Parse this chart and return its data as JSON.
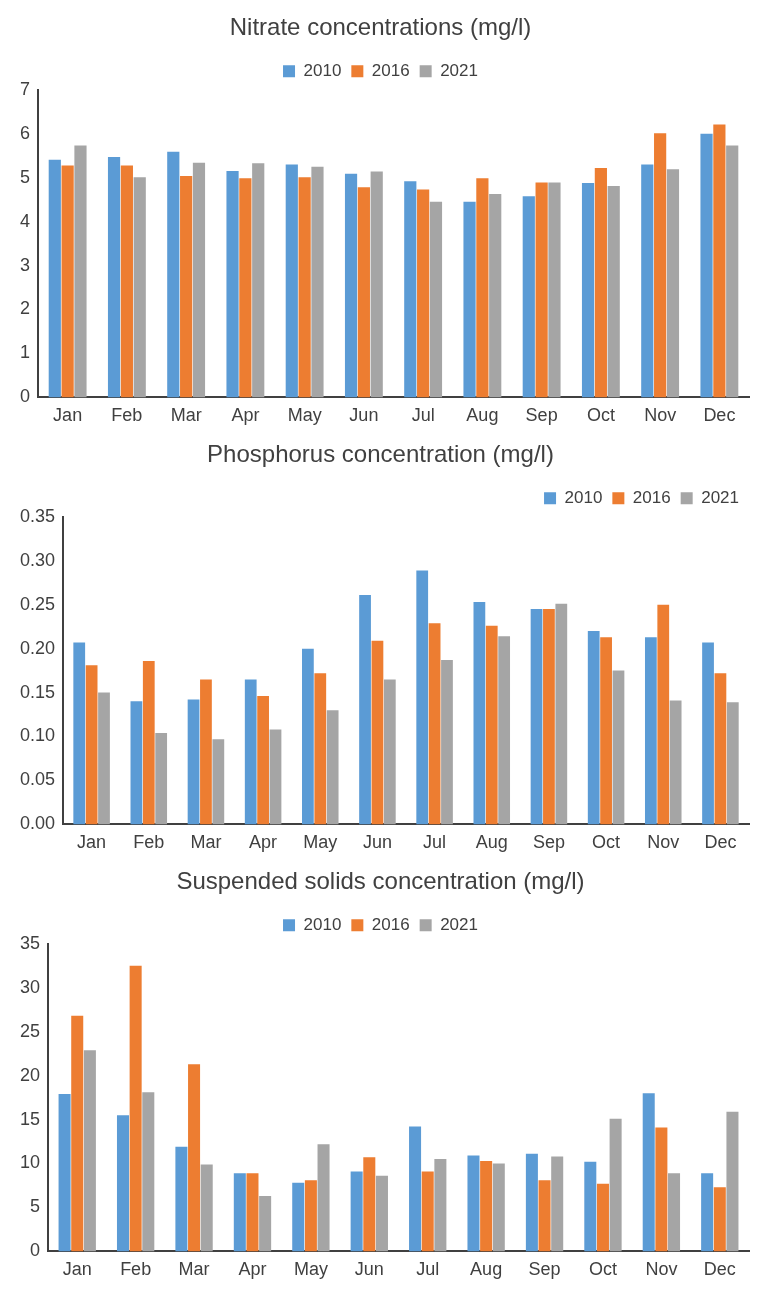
{
  "chart_data": [
    {
      "type": "bar",
      "title": "Nitrate concentrations (mg/l)",
      "categories": [
        "Jan",
        "Feb",
        "Mar",
        "Apr",
        "May",
        "Jun",
        "Jul",
        "Aug",
        "Sep",
        "Oct",
        "Nov",
        "Dec"
      ],
      "series": [
        {
          "name": "2010",
          "color": "#5b9bd5",
          "values": [
            5.41,
            5.47,
            5.59,
            5.15,
            5.3,
            5.09,
            4.92,
            4.45,
            4.58,
            4.88,
            5.3,
            6.0
          ]
        },
        {
          "name": "2016",
          "color": "#ed7d31",
          "values": [
            5.28,
            5.28,
            5.04,
            4.99,
            5.01,
            4.78,
            4.73,
            4.99,
            4.89,
            5.22,
            6.01,
            6.21
          ]
        },
        {
          "name": "2021",
          "color": "#a5a5a5",
          "values": [
            5.73,
            5.01,
            5.34,
            5.33,
            5.25,
            5.14,
            4.45,
            4.63,
            4.89,
            4.81,
            5.19,
            5.73
          ]
        }
      ],
      "ylim": [
        0,
        7
      ],
      "yticks": [
        0,
        1,
        2,
        3,
        4,
        5,
        6,
        7
      ],
      "grid": false,
      "legend": "top"
    },
    {
      "type": "bar",
      "title": "Phosphorus concentration (mg/l)",
      "categories": [
        "Jan",
        "Feb",
        "Mar",
        "Apr",
        "May",
        "Jun",
        "Jul",
        "Aug",
        "Sep",
        "Oct",
        "Nov",
        "Dec"
      ],
      "series": [
        {
          "name": "2010",
          "color": "#5b9bd5",
          "values": [
            0.207,
            0.14,
            0.142,
            0.165,
            0.2,
            0.261,
            0.289,
            0.253,
            0.245,
            0.22,
            0.213,
            0.207
          ]
        },
        {
          "name": "2016",
          "color": "#ed7d31",
          "values": [
            0.181,
            0.186,
            0.165,
            0.146,
            0.172,
            0.209,
            0.229,
            0.226,
            0.245,
            0.213,
            0.25,
            0.172
          ]
        },
        {
          "name": "2021",
          "color": "#a5a5a5",
          "values": [
            0.15,
            0.104,
            0.097,
            0.108,
            0.13,
            0.165,
            0.187,
            0.214,
            0.251,
            0.175,
            0.141,
            0.139
          ]
        }
      ],
      "ylim": [
        0,
        0.35
      ],
      "yticks": [
        {
          "value": 0,
          "label": "0.00"
        },
        {
          "value": 0.05,
          "label": "0.05"
        },
        {
          "value": 0.1,
          "label": "0.10"
        },
        {
          "value": 0.15,
          "label": "0.15"
        },
        {
          "value": 0.2,
          "label": "0.20"
        },
        {
          "value": 0.25,
          "label": "0.25"
        },
        {
          "value": 0.3,
          "label": "0.30"
        },
        {
          "value": 0.35,
          "label": "0.35"
        }
      ],
      "grid": false,
      "legend": "top right"
    },
    {
      "type": "bar",
      "title": "Suspended solids concentration (mg/l)",
      "categories": [
        "Jan",
        "Feb",
        "Mar",
        "Apr",
        "May",
        "Jun",
        "Jul",
        "Aug",
        "Sep",
        "Oct",
        "Nov",
        "Dec"
      ],
      "series": [
        {
          "name": "2010",
          "color": "#5b9bd5",
          "values": [
            17.9,
            15.5,
            11.9,
            8.9,
            7.8,
            9.1,
            14.2,
            10.9,
            11.1,
            10.2,
            18.0,
            8.9
          ]
        },
        {
          "name": "2016",
          "color": "#ed7d31",
          "values": [
            26.8,
            32.5,
            21.3,
            8.9,
            8.1,
            10.7,
            9.1,
            10.3,
            8.1,
            7.7,
            14.1,
            7.3
          ]
        },
        {
          "name": "2021",
          "color": "#a5a5a5",
          "values": [
            22.9,
            18.1,
            9.9,
            6.3,
            12.2,
            8.6,
            10.5,
            10.0,
            10.8,
            15.1,
            8.9,
            15.9
          ]
        }
      ],
      "ylim": [
        0,
        35
      ],
      "yticks": [
        0,
        5,
        10,
        15,
        20,
        25,
        30,
        35
      ],
      "grid": false,
      "legend": "top"
    }
  ]
}
